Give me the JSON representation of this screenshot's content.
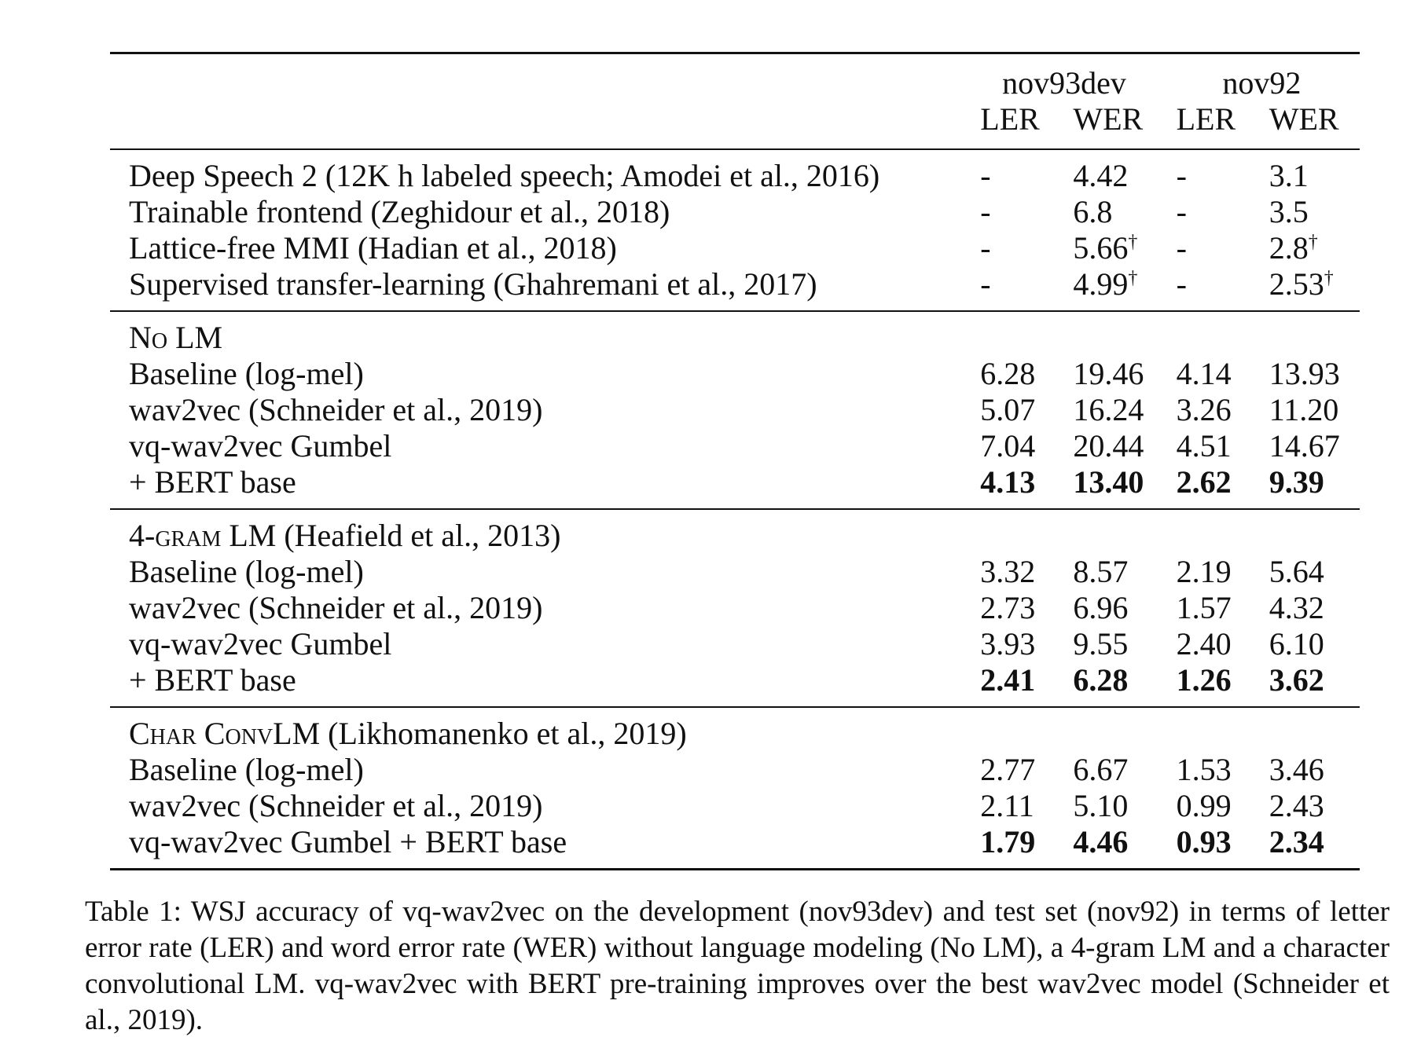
{
  "table": {
    "group_headers": [
      "nov93dev",
      "nov92"
    ],
    "sub_headers": [
      "LER",
      "WER",
      "LER",
      "WER"
    ],
    "sections": [
      {
        "title_parts": [],
        "rows": [
          {
            "label": "Deep Speech 2 (12K h labeled speech; Amodei et al., 2016)",
            "values": [
              "-",
              "4.42",
              "-",
              "3.1"
            ],
            "marks": [
              "",
              "",
              "",
              ""
            ],
            "bold": false
          },
          {
            "label": "Trainable frontend (Zeghidour et al., 2018)",
            "values": [
              "-",
              "6.8",
              "-",
              "3.5"
            ],
            "marks": [
              "",
              "",
              "",
              ""
            ],
            "bold": false
          },
          {
            "label": "Lattice-free MMI (Hadian et al., 2018)",
            "values": [
              "-",
              "5.66",
              "-",
              "2.8"
            ],
            "marks": [
              "",
              "†",
              "",
              "†"
            ],
            "bold": false
          },
          {
            "label": "Supervised transfer-learning (Ghahremani et al., 2017)",
            "values": [
              "-",
              "4.99",
              "-",
              "2.53"
            ],
            "marks": [
              "",
              "†",
              "",
              "†"
            ],
            "bold": false
          }
        ]
      },
      {
        "title_parts": [
          {
            "text": "No LM",
            "sc": true
          }
        ],
        "rows": [
          {
            "label": "Baseline (log-mel)",
            "values": [
              "6.28",
              "19.46",
              "4.14",
              "13.93"
            ],
            "marks": [
              "",
              "",
              "",
              ""
            ],
            "bold": false
          },
          {
            "label": "wav2vec (Schneider et al., 2019)",
            "values": [
              "5.07",
              "16.24",
              "3.26",
              "11.20"
            ],
            "marks": [
              "",
              "",
              "",
              ""
            ],
            "bold": false
          },
          {
            "label": "vq-wav2vec Gumbel",
            "values": [
              "7.04",
              "20.44",
              "4.51",
              "14.67"
            ],
            "marks": [
              "",
              "",
              "",
              ""
            ],
            "bold": false
          },
          {
            "label": "+ BERT base",
            "values": [
              "4.13",
              "13.40",
              "2.62",
              "9.39"
            ],
            "marks": [
              "",
              "",
              "",
              ""
            ],
            "bold": true
          }
        ]
      },
      {
        "title_parts": [
          {
            "text": "4-gram LM",
            "sc": true
          },
          {
            "text": " (Heafield et al., 2013)",
            "sc": false
          }
        ],
        "rows": [
          {
            "label": "Baseline (log-mel)",
            "values": [
              "3.32",
              "8.57",
              "2.19",
              "5.64"
            ],
            "marks": [
              "",
              "",
              "",
              ""
            ],
            "bold": false
          },
          {
            "label": "wav2vec (Schneider et al., 2019)",
            "values": [
              "2.73",
              "6.96",
              "1.57",
              "4.32"
            ],
            "marks": [
              "",
              "",
              "",
              ""
            ],
            "bold": false
          },
          {
            "label": "vq-wav2vec Gumbel",
            "values": [
              "3.93",
              "9.55",
              "2.40",
              "6.10"
            ],
            "marks": [
              "",
              "",
              "",
              ""
            ],
            "bold": false
          },
          {
            "label": "+ BERT base",
            "values": [
              "2.41",
              "6.28",
              "1.26",
              "3.62"
            ],
            "marks": [
              "",
              "",
              "",
              ""
            ],
            "bold": true
          }
        ]
      },
      {
        "title_parts": [
          {
            "text": "Char ConvLM",
            "sc": true
          },
          {
            "text": " (Likhomanenko et al., 2019)",
            "sc": false
          }
        ],
        "rows": [
          {
            "label": "Baseline (log-mel)",
            "values": [
              "2.77",
              "6.67",
              "1.53",
              "3.46"
            ],
            "marks": [
              "",
              "",
              "",
              ""
            ],
            "bold": false
          },
          {
            "label": "wav2vec (Schneider et al., 2019)",
            "values": [
              "2.11",
              "5.10",
              "0.99",
              "2.43"
            ],
            "marks": [
              "",
              "",
              "",
              ""
            ],
            "bold": false
          },
          {
            "label": "vq-wav2vec Gumbel + BERT base",
            "values": [
              "1.79",
              "4.46",
              "0.93",
              "2.34"
            ],
            "marks": [
              "",
              "",
              "",
              ""
            ],
            "bold": true
          }
        ]
      }
    ]
  },
  "caption": "Table 1: WSJ accuracy of vq-wav2vec on the development (nov93dev) and test set (nov92) in terms of letter error rate (LER) and word error rate (WER) without language modeling (No LM), a 4-gram LM and a character convolutional LM. vq-wav2vec with BERT pre-training improves over the best wav2vec model (Schneider et al., 2019)."
}
